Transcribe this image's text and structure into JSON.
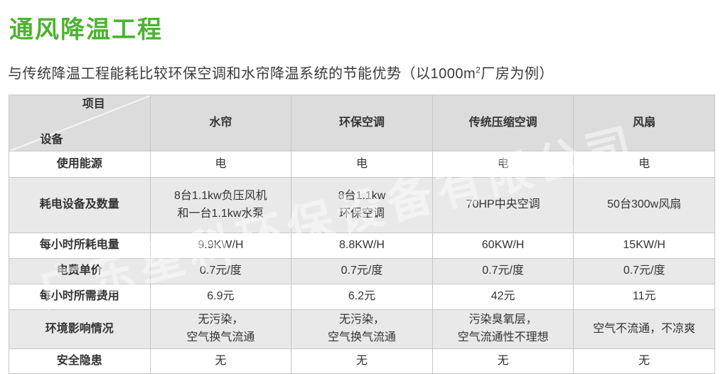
{
  "page": {
    "title": "通风降温工程",
    "subtitle_before": "与传统降温工程能耗比较环保空调和水帘降温系统的节能优势（以1000m",
    "subtitle_sup": "2",
    "subtitle_after": "厂房为例）",
    "watermark": "广东星科环保设备有限公司"
  },
  "colors": {
    "accent_green": "#4cb232",
    "header_bg": "#dcdcdc",
    "alt_row_bg": "#e9e9e9",
    "border": "#c6c6c6"
  },
  "table": {
    "corner": {
      "top_label": "项目",
      "bottom_label": "设备"
    },
    "columns": [
      "水帘",
      "环保空调",
      "传统压缩空调",
      "风扇"
    ],
    "rows": [
      {
        "label": "使用能源",
        "values": [
          "电",
          "电",
          "电",
          "电"
        ]
      },
      {
        "label": "耗电设备及数量",
        "values": [
          "8台1.1kw负压风机\n和一台1.1kw水泵",
          "8台1.1kw\n环保空调",
          "70HP中央空调",
          "50台300w风扇"
        ]
      },
      {
        "label": "每小时所耗电量",
        "values": [
          "9.9KW/H",
          "8.8KW/H",
          "60KW/H",
          "15KW/H"
        ]
      },
      {
        "label": "电费单价",
        "values": [
          "0.7元/度",
          "0.7元/度",
          "0.7元/度",
          "0.7元/度"
        ]
      },
      {
        "label": "每小时所需费用",
        "values": [
          "6.9元",
          "6.2元",
          "42元",
          "11元"
        ]
      },
      {
        "label": "环境影响情况",
        "values": [
          "无污染，\n空气换气流通",
          "无污染，\n空气换气流通",
          "污染臭氧层，\n空气流通性不理想",
          "空气不流通，不凉爽"
        ]
      },
      {
        "label": "安全隐患",
        "values": [
          "无",
          "无",
          "无",
          "无"
        ]
      }
    ]
  }
}
